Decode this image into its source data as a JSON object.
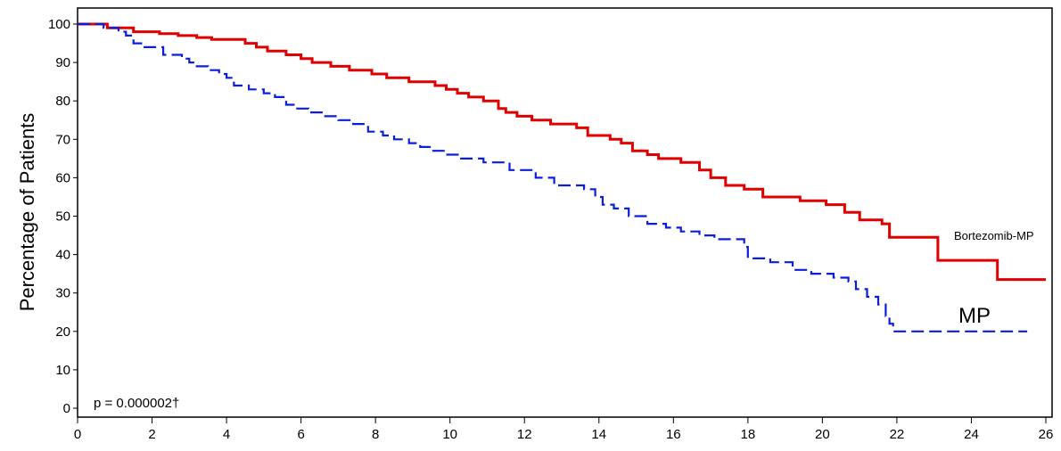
{
  "chart_data": {
    "type": "line",
    "title": "",
    "xlabel": "",
    "ylabel": "Percentage of Patients",
    "xlim": [
      0,
      26
    ],
    "ylim": [
      0,
      100
    ],
    "x_ticks": [
      "0",
      "2",
      "4",
      "6",
      "8",
      "10",
      "12",
      "14",
      "16",
      "18",
      "20",
      "22",
      "24",
      "26"
    ],
    "y_ticks": [
      "0",
      "10",
      "20",
      "30",
      "40",
      "50",
      "60",
      "70",
      "80",
      "90",
      "100"
    ],
    "grid": false,
    "annotations": {
      "p_value": "p = 0.000002†",
      "label_bortezomib": "Bortezomib-MP",
      "label_mp": "MP"
    },
    "series": [
      {
        "name": "Bortezomib-MP",
        "color": "#e00000",
        "style": "solid",
        "step": true,
        "x": [
          0,
          0.8,
          1.5,
          2.2,
          2.7,
          3.2,
          3.6,
          4.5,
          4.8,
          5.1,
          5.6,
          6.0,
          6.3,
          6.8,
          7.3,
          7.9,
          8.3,
          8.9,
          9.6,
          9.9,
          10.2,
          10.5,
          10.9,
          11.3,
          11.5,
          11.8,
          12.2,
          12.7,
          13.4,
          13.7,
          14.3,
          14.6,
          14.9,
          15.3,
          15.6,
          16.2,
          16.7,
          17.0,
          17.4,
          17.9,
          18.4,
          19.4,
          20.1,
          20.6,
          21.0,
          21.6,
          21.8,
          23.1,
          24.7,
          26.0
        ],
        "y": [
          100,
          99,
          98,
          97.5,
          97,
          96.5,
          96,
          95,
          94,
          93,
          92,
          91,
          90,
          89,
          88,
          87,
          86,
          85,
          84,
          83,
          82,
          81,
          80,
          78,
          77,
          76,
          75,
          74,
          73,
          71,
          70,
          69,
          67,
          66,
          65,
          64,
          62,
          60,
          58,
          57,
          55,
          54,
          53,
          51,
          49,
          48,
          44.5,
          38.5,
          33.5,
          33.5
        ]
      },
      {
        "name": "MP",
        "color": "#0a1edc",
        "style": "dashed",
        "step": true,
        "x": [
          0,
          0.7,
          1.1,
          1.3,
          1.5,
          1.8,
          2.3,
          2.8,
          3.0,
          3.2,
          3.5,
          3.8,
          4.0,
          4.2,
          4.6,
          5.0,
          5.3,
          5.6,
          5.9,
          6.2,
          6.6,
          7.0,
          7.4,
          7.8,
          8.2,
          8.5,
          8.9,
          9.2,
          9.5,
          9.9,
          10.3,
          10.9,
          11.6,
          12.3,
          12.8,
          13.6,
          13.9,
          14.1,
          14.4,
          14.8,
          15.3,
          15.8,
          16.2,
          16.7,
          17.1,
          17.9,
          18.0,
          18.6,
          19.2,
          19.7,
          20.3,
          20.7,
          20.9,
          21.2,
          21.5,
          21.7,
          21.8,
          21.9,
          25.5
        ],
        "y": [
          100,
          99,
          98,
          97,
          95,
          94,
          92,
          91,
          90,
          89,
          88,
          87,
          86,
          84,
          83,
          82,
          81,
          79,
          78,
          77,
          76,
          75,
          74,
          72,
          71,
          70,
          69,
          68,
          67,
          66,
          65,
          64,
          62,
          60,
          58,
          57,
          55,
          53,
          52,
          50,
          48,
          47,
          46,
          45,
          44,
          42,
          39,
          38,
          36,
          35,
          34,
          33,
          31,
          29,
          27,
          24,
          22,
          20,
          20
        ]
      }
    ]
  }
}
